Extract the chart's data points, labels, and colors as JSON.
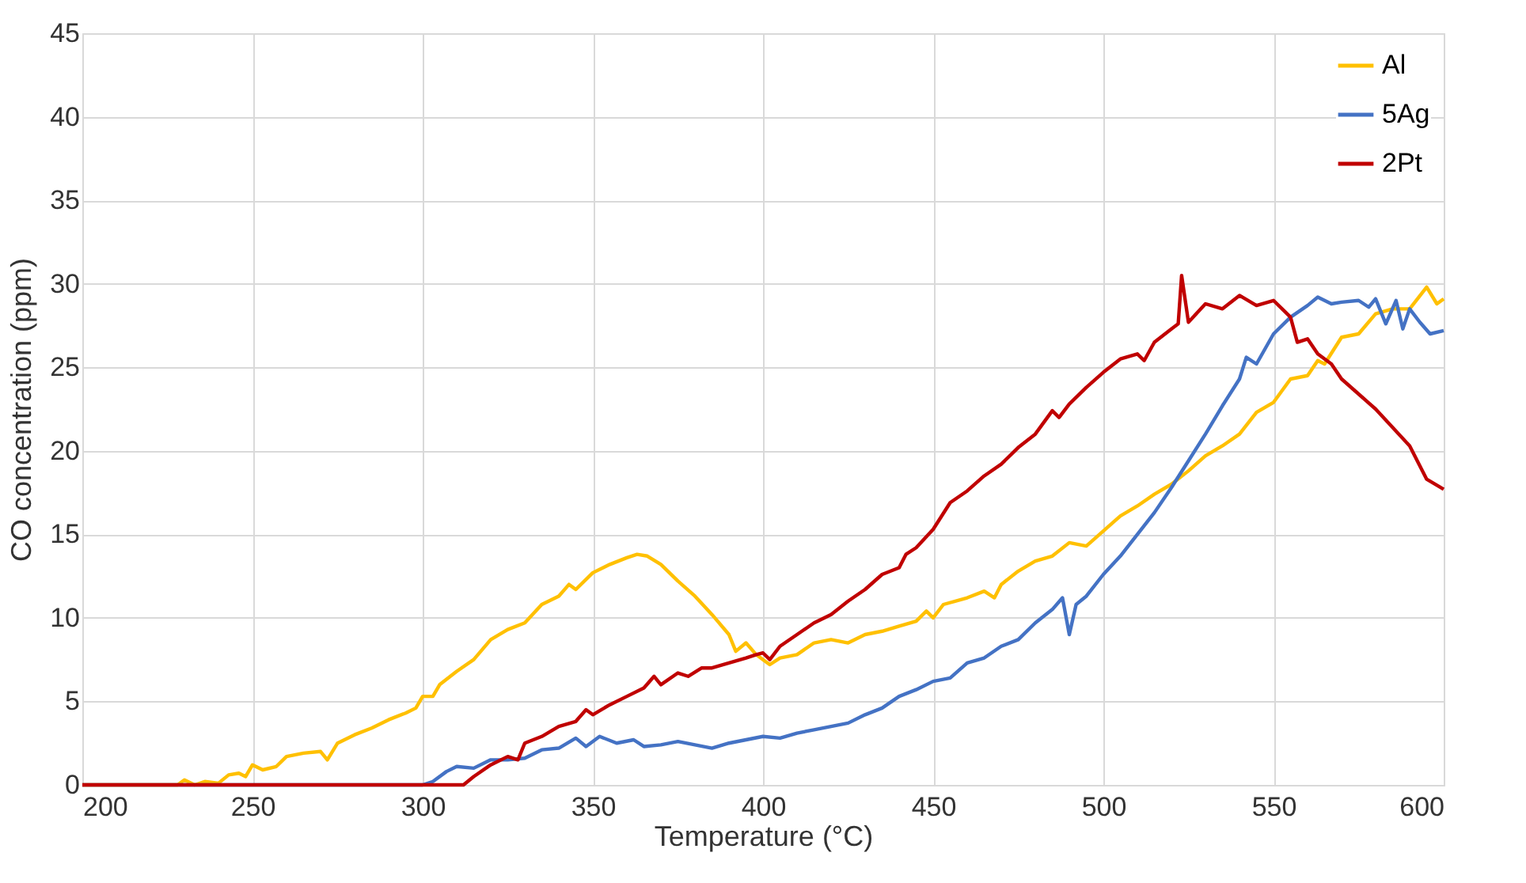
{
  "chart_data": {
    "type": "line",
    "xlabel": "Temperature (°C)",
    "ylabel": "CO concentration (ppm)",
    "xlim": [
      200,
      600
    ],
    "xticks": [
      200,
      250,
      300,
      350,
      400,
      450,
      500,
      550,
      600
    ],
    "ylim": [
      0,
      45
    ],
    "yticks": [
      0,
      5,
      10,
      15,
      20,
      25,
      30,
      35,
      40,
      45
    ],
    "grid": true,
    "legend": "top right",
    "marker": "none",
    "line_style": "solid",
    "series": [
      {
        "name": "Al",
        "color": "#ffc000",
        "x": [
          200,
          228,
          230,
          233,
          236,
          240,
          243,
          246,
          248,
          250,
          253,
          257,
          260,
          265,
          270,
          272,
          275,
          280,
          285,
          290,
          295,
          298,
          300,
          303,
          305,
          310,
          315,
          320,
          325,
          330,
          335,
          340,
          343,
          345,
          350,
          355,
          360,
          363,
          366,
          370,
          375,
          380,
          385,
          390,
          392,
          395,
          398,
          400,
          402,
          405,
          410,
          415,
          420,
          425,
          430,
          435,
          440,
          445,
          448,
          450,
          453,
          460,
          465,
          468,
          470,
          475,
          480,
          485,
          490,
          495,
          500,
          505,
          510,
          515,
          520,
          525,
          530,
          535,
          540,
          545,
          550,
          555,
          560,
          563,
          565,
          570,
          575,
          580,
          585,
          590,
          595,
          598,
          600
        ],
        "values": [
          0,
          0,
          0.3,
          0,
          0.2,
          0.1,
          0.6,
          0.7,
          0.5,
          1.2,
          0.9,
          1.1,
          1.7,
          1.9,
          2.0,
          1.5,
          2.5,
          3.0,
          3.4,
          3.9,
          4.3,
          4.6,
          5.3,
          5.3,
          6.0,
          6.8,
          7.5,
          8.7,
          9.3,
          9.7,
          10.8,
          11.3,
          12.0,
          11.7,
          12.7,
          13.2,
          13.6,
          13.8,
          13.7,
          13.2,
          12.2,
          11.3,
          10.2,
          9.0,
          8.0,
          8.5,
          7.8,
          7.5,
          7.2,
          7.6,
          7.8,
          8.5,
          8.7,
          8.5,
          9.0,
          9.2,
          9.5,
          9.8,
          10.4,
          10.0,
          10.8,
          11.2,
          11.6,
          11.2,
          12.0,
          12.8,
          13.4,
          13.7,
          14.5,
          14.3,
          15.2,
          16.1,
          16.7,
          17.4,
          18.0,
          18.8,
          19.7,
          20.3,
          21.0,
          22.3,
          22.9,
          24.3,
          24.5,
          25.4,
          25.2,
          26.8,
          27.0,
          28.2,
          28.5,
          28.5,
          29.8,
          28.8,
          29.1
        ]
      },
      {
        "name": "5Ag",
        "color": "#4472c4",
        "x": [
          200,
          300,
          303,
          307,
          310,
          315,
          320,
          325,
          330,
          335,
          340,
          345,
          348,
          352,
          357,
          362,
          365,
          370,
          375,
          380,
          385,
          390,
          395,
          400,
          405,
          410,
          415,
          420,
          425,
          430,
          435,
          440,
          445,
          450,
          455,
          460,
          465,
          470,
          475,
          480,
          485,
          488,
          490,
          492,
          495,
          500,
          505,
          510,
          515,
          520,
          525,
          530,
          535,
          540,
          542,
          545,
          550,
          555,
          560,
          563,
          567,
          570,
          575,
          578,
          580,
          583,
          586,
          588,
          590,
          593,
          596,
          600
        ],
        "values": [
          0,
          0,
          0.2,
          0.8,
          1.1,
          1.0,
          1.5,
          1.5,
          1.6,
          2.1,
          2.2,
          2.8,
          2.3,
          2.9,
          2.5,
          2.7,
          2.3,
          2.4,
          2.6,
          2.4,
          2.2,
          2.5,
          2.7,
          2.9,
          2.8,
          3.1,
          3.3,
          3.5,
          3.7,
          4.2,
          4.6,
          5.3,
          5.7,
          6.2,
          6.4,
          7.3,
          7.6,
          8.3,
          8.7,
          9.7,
          10.5,
          11.2,
          9.0,
          10.8,
          11.3,
          12.6,
          13.7,
          15.0,
          16.3,
          17.8,
          19.4,
          21.0,
          22.7,
          24.3,
          25.6,
          25.2,
          27.0,
          28.0,
          28.7,
          29.2,
          28.8,
          28.9,
          29.0,
          28.6,
          29.1,
          27.6,
          29.0,
          27.3,
          28.5,
          27.7,
          27.0,
          27.2
        ]
      },
      {
        "name": "2Pt",
        "color": "#c00000",
        "x": [
          200,
          312,
          315,
          320,
          325,
          328,
          330,
          335,
          340,
          345,
          348,
          350,
          355,
          360,
          365,
          368,
          370,
          375,
          378,
          382,
          385,
          390,
          395,
          398,
          400,
          402,
          405,
          410,
          415,
          420,
          425,
          430,
          435,
          440,
          442,
          445,
          450,
          455,
          460,
          465,
          470,
          475,
          480,
          485,
          487,
          490,
          495,
          500,
          505,
          510,
          512,
          515,
          520,
          522,
          523,
          525,
          530,
          535,
          540,
          545,
          550,
          553,
          555,
          557,
          560,
          563,
          567,
          570,
          575,
          580,
          585,
          590,
          595,
          600
        ],
        "values": [
          0,
          0,
          0.5,
          1.2,
          1.7,
          1.5,
          2.5,
          2.9,
          3.5,
          3.8,
          4.5,
          4.2,
          4.8,
          5.3,
          5.8,
          6.5,
          6.0,
          6.7,
          6.5,
          7.0,
          7.0,
          7.3,
          7.6,
          7.8,
          7.9,
          7.5,
          8.3,
          9.0,
          9.7,
          10.2,
          11.0,
          11.7,
          12.6,
          13.0,
          13.8,
          14.2,
          15.3,
          16.9,
          17.6,
          18.5,
          19.2,
          20.2,
          21.0,
          22.4,
          22.0,
          22.8,
          23.8,
          24.7,
          25.5,
          25.8,
          25.4,
          26.5,
          27.3,
          27.6,
          30.5,
          27.7,
          28.8,
          28.5,
          29.3,
          28.7,
          29.0,
          28.4,
          28.0,
          26.5,
          26.7,
          25.8,
          25.2,
          24.3,
          23.4,
          22.5,
          21.4,
          20.3,
          18.3,
          17.7
        ]
      }
    ]
  }
}
